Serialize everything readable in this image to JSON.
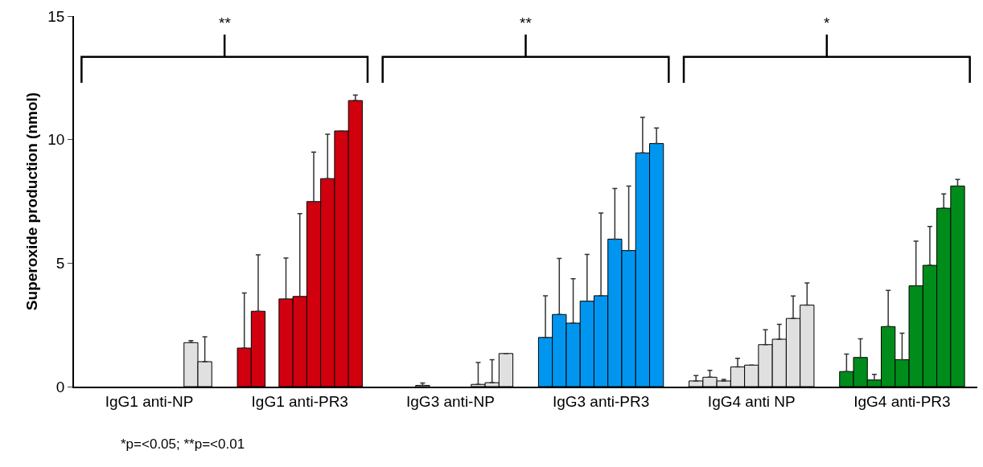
{
  "chart_data": {
    "type": "bar",
    "ylabel": "Superoxide production (nmol)",
    "categories": [
      "IgG1 anti-NP",
      "IgG1 anti-PR3",
      "IgG3 anti-NP",
      "IgG3 anti-PR3",
      "IgG4 anti NP",
      "IgG4 anti-PR3"
    ],
    "ylim": [
      0,
      15
    ],
    "yticks": [
      0,
      5,
      10,
      15
    ],
    "series": [
      {
        "colors": [
          "#e0e0e0",
          "#d0000f",
          "#e0e0e0",
          "#0096f0",
          "#e0e0e0",
          "#008c1a"
        ],
        "values": [
          null,
          1.56,
          null,
          1.99,
          0.23,
          0.61
        ],
        "errors": [
          null,
          [
            1.56,
            3.79
          ],
          null,
          [
            1.99,
            3.68
          ],
          [
            0.23,
            0.45
          ],
          [
            0.61,
            1.32
          ]
        ]
      },
      {
        "colors": [
          "#e0e0e0",
          "#d0000f",
          "#e0e0e0",
          "#0096f0",
          "#e0e0e0",
          "#008c1a"
        ],
        "values": [
          null,
          3.05,
          null,
          2.92,
          0.38,
          1.18
        ],
        "errors": [
          null,
          [
            3.05,
            5.34
          ],
          null,
          [
            2.92,
            5.19
          ],
          [
            0.38,
            0.66
          ],
          [
            1.18,
            1.94
          ]
        ]
      },
      {
        "colors": [
          "#e0e0e0",
          "#d0000f",
          "#e0e0e0",
          "#0096f0",
          "#e0e0e0",
          "#008c1a"
        ],
        "values": [
          null,
          null,
          0.05,
          2.57,
          0.23,
          0.27
        ],
        "errors": [
          null,
          null,
          [
            0.05,
            0.15
          ],
          [
            2.57,
            4.37
          ],
          [
            0.23,
            0.29
          ],
          [
            0.27,
            0.5
          ]
        ]
      },
      {
        "colors": [
          "#e0e0e0",
          "#d0000f",
          "#e0e0e0",
          "#0096f0",
          "#e0e0e0",
          "#008c1a"
        ],
        "values": [
          null,
          3.55,
          null,
          3.46,
          0.8,
          2.43
        ],
        "errors": [
          null,
          [
            3.55,
            5.21
          ],
          null,
          [
            3.46,
            5.35
          ],
          [
            0.8,
            1.15
          ],
          [
            2.43,
            3.9
          ]
        ]
      },
      {
        "colors": [
          "#e0e0e0",
          "#d0000f",
          "#e0e0e0",
          "#0096f0",
          "#e0e0e0",
          "#008c1a"
        ],
        "values": [
          null,
          3.65,
          null,
          3.68,
          0.87,
          1.09
        ],
        "errors": [
          null,
          [
            3.65,
            7.0
          ],
          null,
          [
            3.68,
            7.03
          ],
          null,
          [
            1.09,
            2.16
          ]
        ]
      },
      {
        "colors": [
          "#e0e0e0",
          "#d0000f",
          "#e0e0e0",
          "#0096f0",
          "#e0e0e0",
          "#008c1a"
        ],
        "values": [
          null,
          7.49,
          null,
          5.97,
          1.7,
          4.08
        ],
        "errors": [
          null,
          [
            7.49,
            9.49
          ],
          null,
          [
            5.97,
            8.02
          ],
          [
            1.7,
            2.3
          ],
          [
            4.08,
            5.89
          ]
        ]
      },
      {
        "colors": [
          "#e0e0e0",
          "#d0000f",
          "#e0e0e0",
          "#0096f0",
          "#e0e0e0",
          "#008c1a"
        ],
        "values": [
          null,
          8.42,
          0.09,
          5.51,
          1.92,
          4.91
        ],
        "errors": [
          null,
          [
            8.42,
            10.22
          ],
          [
            0.09,
            0.98
          ],
          [
            5.51,
            8.12
          ],
          [
            1.92,
            2.52
          ],
          [
            4.91,
            6.48
          ]
        ]
      },
      {
        "colors": [
          "#e0e0e0",
          "#d0000f",
          "#e0e0e0",
          "#0096f0",
          "#e0e0e0",
          "#008c1a"
        ],
        "values": [
          1.78,
          10.35,
          0.16,
          9.46,
          2.76,
          7.22
        ],
        "errors": [
          [
            1.78,
            1.86
          ],
          null,
          [
            0.16,
            1.09
          ],
          [
            9.46,
            10.9
          ],
          [
            2.76,
            3.67
          ],
          [
            7.22,
            7.8
          ]
        ]
      },
      {
        "colors": [
          "#e0e0e0",
          "#d0000f",
          "#e0e0e0",
          "#0096f0",
          "#e0e0e0",
          "#008c1a"
        ],
        "values": [
          1.01,
          11.58,
          1.34,
          9.84,
          3.3,
          8.12
        ],
        "errors": [
          [
            1.01,
            2.02
          ],
          [
            11.58,
            11.8
          ],
          null,
          [
            9.84,
            10.47
          ],
          [
            3.3,
            4.2
          ],
          [
            8.12,
            8.39
          ]
        ]
      }
    ],
    "annotations": [
      "**",
      "**",
      "*",
      "*p=<0.05; **p=<0.01"
    ]
  }
}
